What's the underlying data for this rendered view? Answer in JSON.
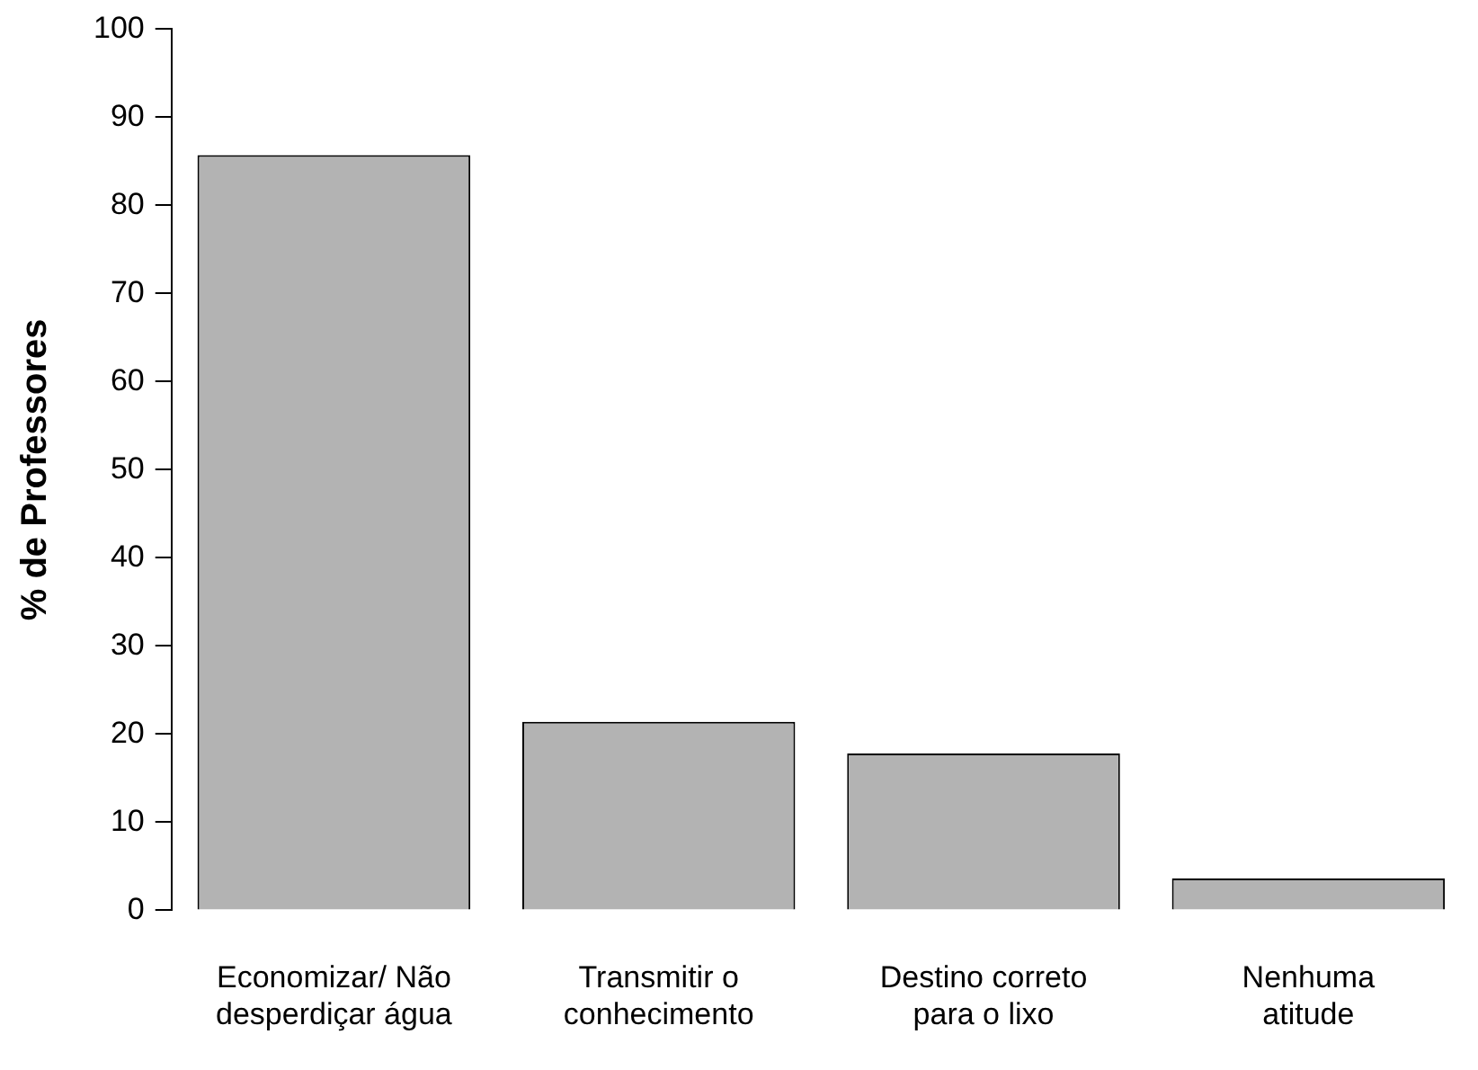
{
  "chart_data": {
    "type": "bar",
    "ylabel": "% de Professores",
    "categories": [
      "Economizar/ Não\ndesperdiçar água",
      "Transmitir o\nconhecimento",
      "Destino correto\npara o lixo",
      "Nenhuma\natitude"
    ],
    "values": [
      85.7,
      21.4,
      17.8,
      3.6
    ],
    "color": "#b3b3b3",
    "ylim": [
      0,
      100
    ],
    "yticks": [
      0,
      10,
      20,
      30,
      40,
      50,
      60,
      70,
      80,
      90,
      100
    ],
    "grid": false,
    "legend": false
  }
}
